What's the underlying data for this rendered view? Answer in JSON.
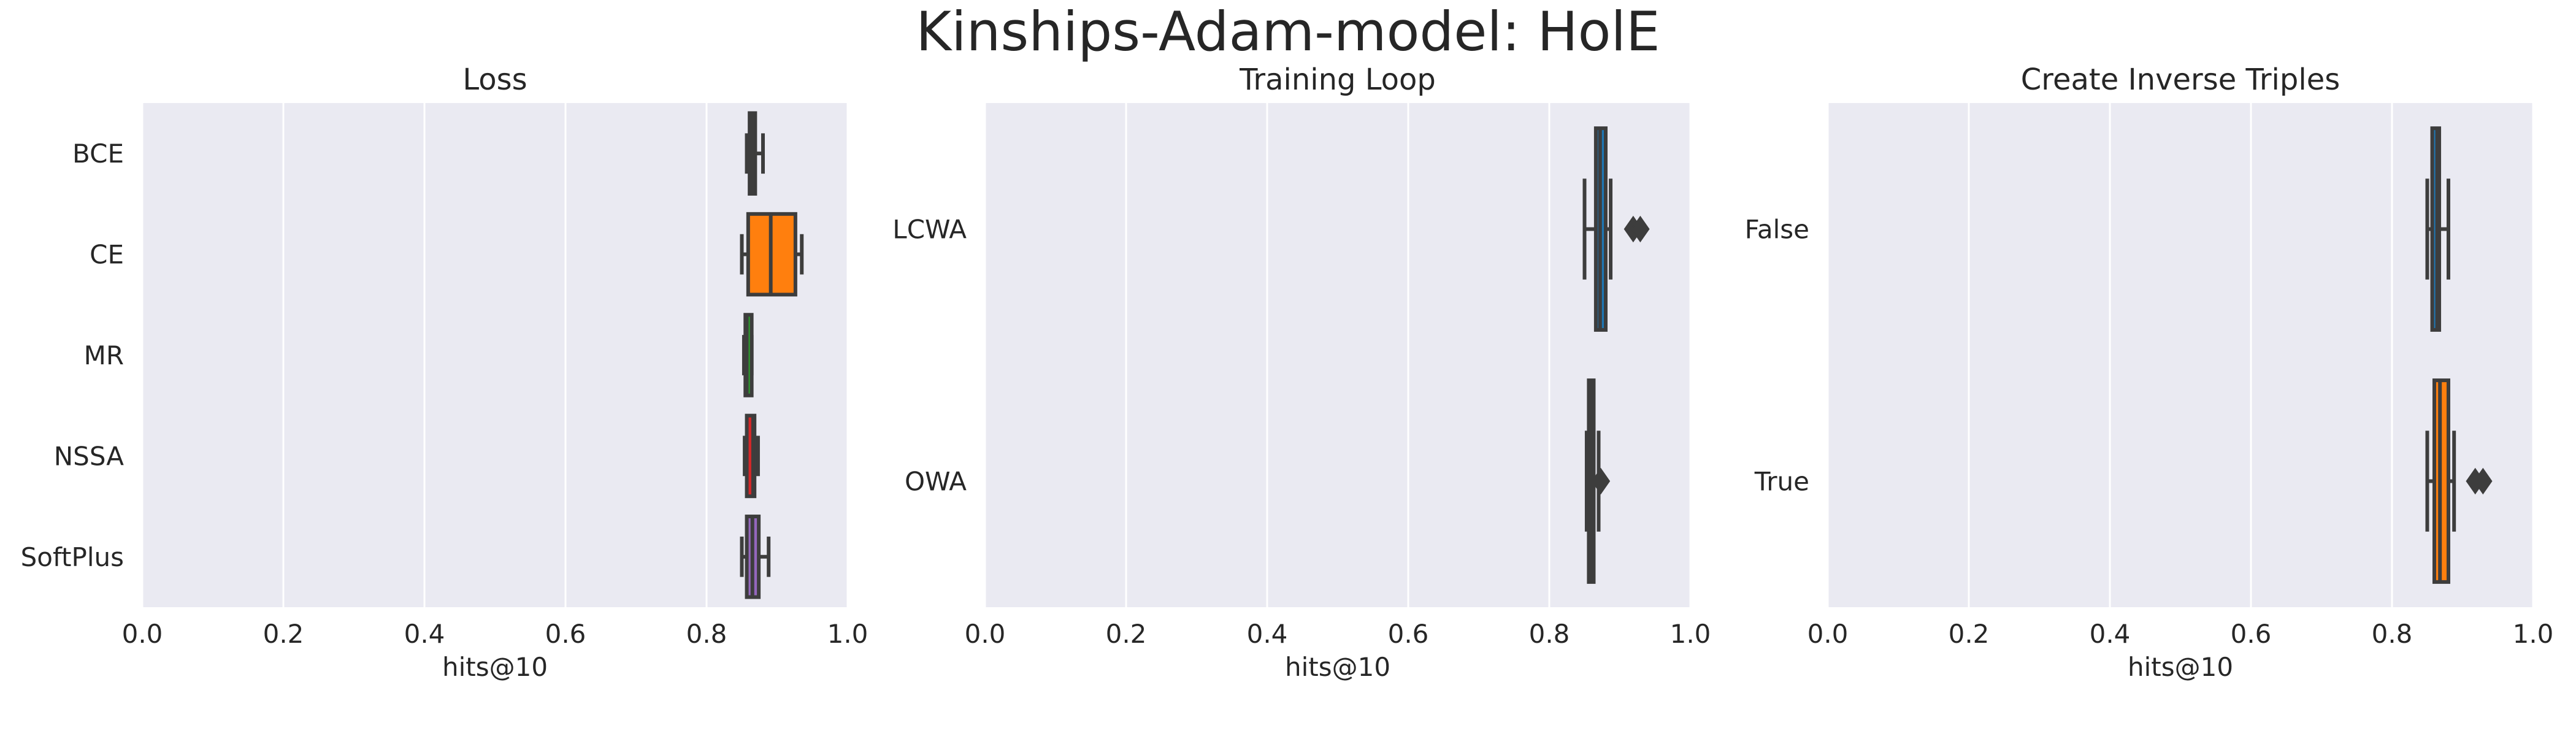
{
  "title": "Kinships-Adam-model: HolE",
  "colors": {
    "panel_bg": "#EAEAF2",
    "grid": "#FFFFFF",
    "line": "#3D3D3D",
    "palette": [
      "#1F77B4",
      "#FF7F0E",
      "#2CA02C",
      "#D62728",
      "#9467BD"
    ]
  },
  "chart_data": [
    {
      "type": "box",
      "orientation": "horizontal",
      "title": "Loss",
      "xlabel": "hits@10",
      "xlim": [
        0,
        1
      ],
      "xticks": [
        "0.0",
        "0.2",
        "0.4",
        "0.6",
        "0.8",
        "1.0"
      ],
      "grid": true,
      "categories": [
        "BCE",
        "CE",
        "MR",
        "NSSA",
        "SoftPlus"
      ],
      "boxes": [
        {
          "category": "BCE",
          "min": 0.857,
          "q1": 0.861,
          "median": 0.866,
          "q3": 0.869,
          "max": 0.88,
          "outliers": []
        },
        {
          "category": "CE",
          "min": 0.85,
          "q1": 0.859,
          "median": 0.891,
          "q3": 0.926,
          "max": 0.935,
          "outliers": []
        },
        {
          "category": "MR",
          "min": 0.853,
          "q1": 0.855,
          "median": 0.857,
          "q3": 0.864,
          "max": 0.864,
          "outliers": []
        },
        {
          "category": "NSSA",
          "min": 0.854,
          "q1": 0.857,
          "median": 0.866,
          "q3": 0.868,
          "max": 0.873,
          "outliers": []
        },
        {
          "category": "SoftPlus",
          "min": 0.85,
          "q1": 0.857,
          "median": 0.865,
          "q3": 0.874,
          "max": 0.888,
          "outliers": []
        }
      ]
    },
    {
      "type": "box",
      "orientation": "horizontal",
      "title": "Training Loop",
      "xlabel": "hits@10",
      "xlim": [
        0,
        1
      ],
      "xticks": [
        "0.0",
        "0.2",
        "0.4",
        "0.6",
        "0.8",
        "1.0"
      ],
      "grid": true,
      "categories": [
        "LCWA",
        "OWA"
      ],
      "boxes": [
        {
          "category": "LCWA",
          "min": 0.85,
          "q1": 0.866,
          "median": 0.872,
          "q3": 0.88,
          "max": 0.887,
          "outliers": [
            0.919,
            0.929
          ]
        },
        {
          "category": "OWA",
          "min": 0.853,
          "q1": 0.856,
          "median": 0.858,
          "q3": 0.863,
          "max": 0.87,
          "outliers": [
            0.873
          ]
        }
      ]
    },
    {
      "type": "box",
      "orientation": "horizontal",
      "title": "Create Inverse Triples",
      "xlabel": "hits@10",
      "xlim": [
        0,
        1
      ],
      "xticks": [
        "0.0",
        "0.2",
        "0.4",
        "0.6",
        "0.8",
        "1.0"
      ],
      "grid": true,
      "categories": [
        "False",
        "True"
      ],
      "boxes": [
        {
          "category": "False",
          "min": 0.85,
          "q1": 0.857,
          "median": 0.864,
          "q3": 0.867,
          "max": 0.88,
          "outliers": []
        },
        {
          "category": "True",
          "min": 0.85,
          "q1": 0.86,
          "median": 0.868,
          "q3": 0.88,
          "max": 0.888,
          "outliers": [
            0.918,
            0.929
          ]
        }
      ]
    }
  ]
}
